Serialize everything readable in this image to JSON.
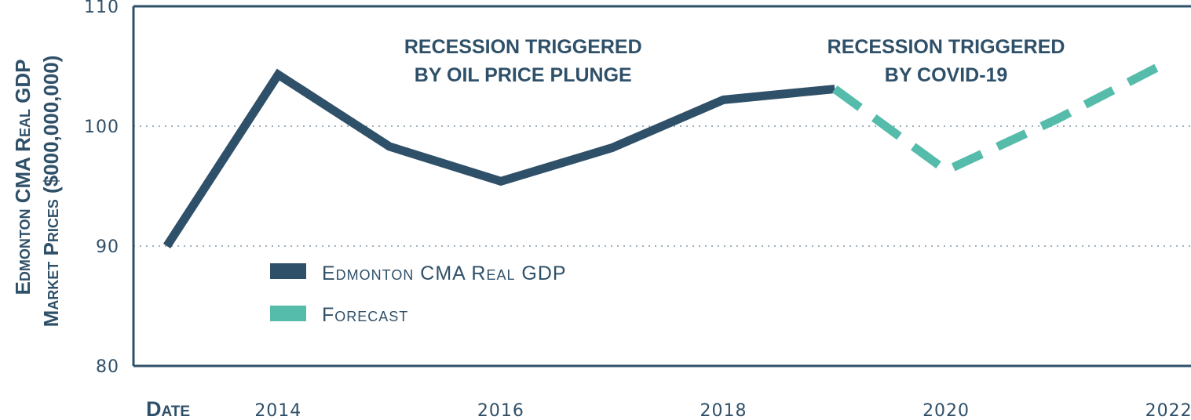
{
  "colors": {
    "actual": "#2f5069",
    "forecast": "#55bcab",
    "grid": "#9fb1bd",
    "axis": "#2f5069",
    "text": "#2f5069"
  },
  "chart_data": {
    "type": "line",
    "ylabel_line1": "Edmonton CMA Real GDP",
    "ylabel_line2": "Market Prices ($000,000,000)",
    "xlabel": "Date",
    "ylim": [
      80,
      110
    ],
    "yticks": [
      "80",
      "90",
      "100",
      "110"
    ],
    "xlim": [
      2012.7,
      2022.2
    ],
    "xticks": [
      "2014",
      "2016",
      "2018",
      "2020",
      "2022"
    ],
    "grid": {
      "horizontal_dotted_at": [
        90,
        100
      ]
    },
    "legend_position": "center-left",
    "series": [
      {
        "name": "Edmonton CMA Real GDP",
        "style": "solid",
        "points": [
          {
            "x": 2013,
            "y": 90.0
          },
          {
            "x": 2014,
            "y": 104.3
          },
          {
            "x": 2015,
            "y": 98.3
          },
          {
            "x": 2016,
            "y": 95.4
          },
          {
            "x": 2017,
            "y": 98.2
          },
          {
            "x": 2018,
            "y": 102.2
          },
          {
            "x": 2019,
            "y": 103.1
          }
        ]
      },
      {
        "name": "Forecast",
        "style": "dashed",
        "points": [
          {
            "x": 2019,
            "y": 103.1
          },
          {
            "x": 2020,
            "y": 96.3
          },
          {
            "x": 2021,
            "y": 100.6
          },
          {
            "x": 2022,
            "y": 105.4
          }
        ]
      }
    ],
    "annotations": [
      {
        "lines": [
          "Recession Triggered",
          "by Oil Price Plunge"
        ],
        "x": 2016.2,
        "y": 107.5
      },
      {
        "lines": [
          "Recession Triggered",
          "by COVID-19"
        ],
        "x": 2020.0,
        "y": 107.5
      }
    ]
  }
}
